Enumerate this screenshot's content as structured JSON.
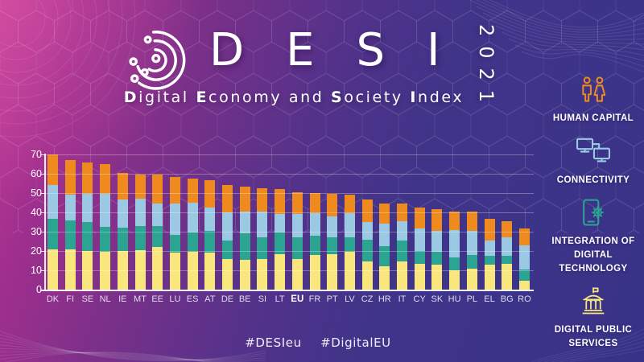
{
  "header": {
    "title": "DESI",
    "year": "2021",
    "subtitle": "Digital Economy and Society Index",
    "logo": "desi-circuit-logo"
  },
  "sidebar": {
    "items": [
      {
        "id": "human-capital",
        "label": "HUMAN CAPITAL",
        "icon": "people-icon",
        "color": "#EF8A1F"
      },
      {
        "id": "connectivity",
        "label": "CONNECTIVITY",
        "icon": "connected-computers-icon",
        "color": "#9BC9E3"
      },
      {
        "id": "integration-of-digital-technology",
        "label": "INTEGRATION OF DIGITAL TECHNOLOGY",
        "icon": "phone-gear-icon",
        "color": "#2BA491"
      },
      {
        "id": "digital-public-services",
        "label": "DIGITAL PUBLIC SERVICES",
        "icon": "government-building-icon",
        "color": "#F9E77E"
      }
    ]
  },
  "footer": {
    "hashtags": [
      "#DESIeu",
      "#DigitalEU"
    ]
  },
  "colors": {
    "background_left": "#C23D96",
    "background_right": "#383388",
    "bar_yellow": "#F9E77E",
    "bar_teal": "#2BA491",
    "bar_light_blue": "#9BC9E3",
    "bar_orange": "#EF8A1F",
    "axis_text": "#FFFFFF"
  },
  "chart_data": {
    "type": "bar",
    "stacked": true,
    "stack_bottom_to_top": true,
    "title": "DESI 2021 overall index by country (stacked by dimension)",
    "categories": [
      "DK",
      "FI",
      "SE",
      "NL",
      "IE",
      "MT",
      "EE",
      "LU",
      "ES",
      "AT",
      "DE",
      "BE",
      "SI",
      "LT",
      "EU",
      "FR",
      "PT",
      "LV",
      "CZ",
      "HR",
      "IT",
      "CY",
      "SK",
      "HU",
      "PL",
      "EL",
      "BG",
      "RO"
    ],
    "highlight_category": "EU",
    "xlabel": "",
    "ylabel": "",
    "ylim": [
      0,
      70
    ],
    "yticks": [
      0,
      10,
      20,
      30,
      40,
      50,
      60,
      70
    ],
    "grid": true,
    "legend_position": "right-sidebar",
    "series": [
      {
        "name": "Digital Public Services",
        "color": "#F9E77E",
        "values": [
          21,
          21,
          20,
          19.5,
          20,
          20.5,
          22,
          19,
          19.5,
          19,
          16,
          15.5,
          16,
          18.5,
          16,
          18,
          18.5,
          19.5,
          14.5,
          12,
          14.5,
          13.5,
          13,
          10,
          11,
          13,
          13.5,
          4.5
        ]
      },
      {
        "name": "Integration of Digital Technology",
        "color": "#2BA491",
        "values": [
          15.5,
          15,
          15,
          13,
          12,
          12.5,
          11,
          9.5,
          10,
          11.5,
          9.5,
          13.5,
          11,
          11,
          11,
          10,
          8.5,
          7.5,
          11.5,
          10.5,
          11,
          6.5,
          6.5,
          6.5,
          7,
          4.5,
          4,
          6
        ]
      },
      {
        "name": "Connectivity",
        "color": "#9BC9E3",
        "values": [
          17.5,
          13,
          14.5,
          17,
          14.5,
          14,
          11.5,
          16,
          15.5,
          12,
          14.5,
          11.5,
          13.5,
          9.5,
          12,
          11.5,
          11,
          12.5,
          9,
          11.5,
          10,
          11.5,
          11,
          14.5,
          12.5,
          8,
          9.5,
          12.5
        ]
      },
      {
        "name": "Human Capital",
        "color": "#EF8A1F",
        "values": [
          16,
          18,
          16.5,
          15.5,
          14,
          12.5,
          15,
          14,
          12.5,
          14,
          14,
          13,
          12,
          13,
          11.5,
          10.5,
          11.5,
          9.5,
          11.5,
          10.5,
          9,
          11,
          11,
          9.5,
          10,
          11,
          8.5,
          8.5
        ]
      }
    ],
    "totals": [
      70,
      67,
      66,
      65,
      60.5,
      59.5,
      59.5,
      58.5,
      57.5,
      56.5,
      54,
      53.5,
      52.5,
      52,
      50.5,
      50,
      49.5,
      49,
      46.5,
      44.5,
      44.5,
      42.5,
      41.5,
      40.5,
      40.5,
      36.5,
      35.5,
      31.5
    ]
  }
}
